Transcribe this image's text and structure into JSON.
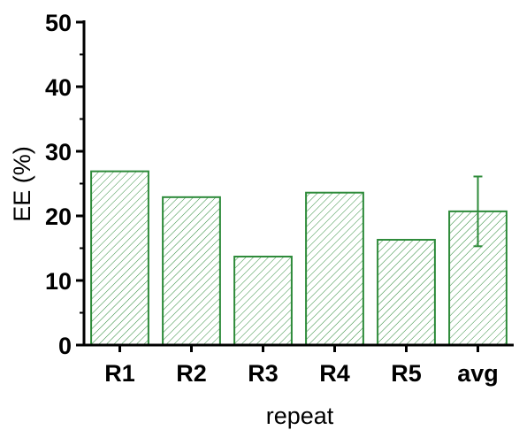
{
  "chart_data": {
    "type": "bar",
    "title": "",
    "xlabel": "repeat",
    "ylabel": "EE (%)",
    "categories": [
      "R1",
      "R2",
      "R3",
      "R4",
      "R5",
      "avg"
    ],
    "values": [
      26.9,
      22.9,
      13.7,
      23.6,
      16.3,
      20.7
    ],
    "error": [
      null,
      null,
      null,
      null,
      null,
      5.4
    ],
    "ylim": [
      0,
      50
    ],
    "yticks": [
      0,
      10,
      20,
      30,
      40,
      50
    ],
    "ytick_labels": [
      "0",
      "10",
      "20",
      "30",
      "40",
      "50"
    ],
    "grid": false,
    "legend": "none",
    "bar_color": "#2e8b3a",
    "hatch": "diagonal"
  }
}
